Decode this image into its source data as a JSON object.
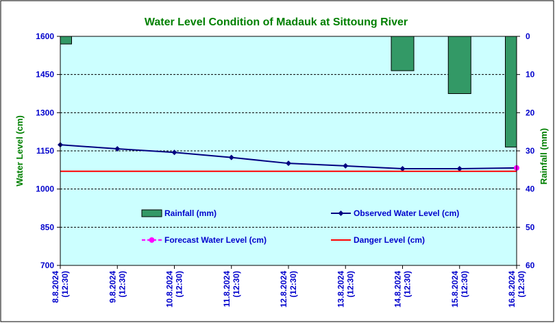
{
  "chart_data": {
    "type": "line",
    "title": "Water Level Condition of Madauk at Sittoung River",
    "ylabel": "Water Level (cm)",
    "y2label": "Rainfall (mm)",
    "categories": [
      "8.8.2024\n(12:30)",
      "9.8.2024\n(12:30)",
      "10.8.2024\n(12:30)",
      "11.8.2024\n(12:30)",
      "12.8.2024\n(12:30)",
      "13.8.2024\n(12:30)",
      "14.8.2024\n(12:30)",
      "15.8.2024\n(12:30)",
      "16.8.2024\n(12:30)"
    ],
    "ylim": [
      700,
      1600
    ],
    "yticks": [
      700,
      850,
      1000,
      1150,
      1300,
      1450,
      1600
    ],
    "y2lim": [
      0,
      60
    ],
    "y2ticks": [
      0,
      10,
      20,
      30,
      40,
      50,
      60
    ],
    "y2_inverted": true,
    "grid": true,
    "series": [
      {
        "name": "Rainfall (mm)",
        "kind": "bar",
        "axis": "right",
        "color": "#339966",
        "values": [
          2,
          0,
          0,
          0,
          0,
          0,
          9,
          15,
          29
        ]
      },
      {
        "name": "Observed Water Level (cm)",
        "kind": "line",
        "axis": "left",
        "color": "#000080",
        "marker": "diamond",
        "values": [
          1174,
          1158,
          1144,
          1124,
          1101,
          1091,
          1080,
          1080,
          1083
        ]
      },
      {
        "name": "Forecast Water Level (cm)",
        "kind": "line",
        "axis": "left",
        "color": "#ff00ff",
        "marker": "circle",
        "dash": true,
        "values": [
          null,
          null,
          null,
          null,
          null,
          null,
          null,
          null,
          1083
        ]
      },
      {
        "name": "Danger Level (cm)",
        "kind": "line",
        "axis": "left",
        "color": "#ff0000",
        "values": [
          1070,
          1070,
          1070,
          1070,
          1070,
          1070,
          1070,
          1070,
          1070
        ]
      }
    ],
    "colors": {
      "plot_background": "#ccffff",
      "title": "#008000",
      "axis_text": "#0000cc",
      "right_axis_label": "#008000"
    }
  }
}
